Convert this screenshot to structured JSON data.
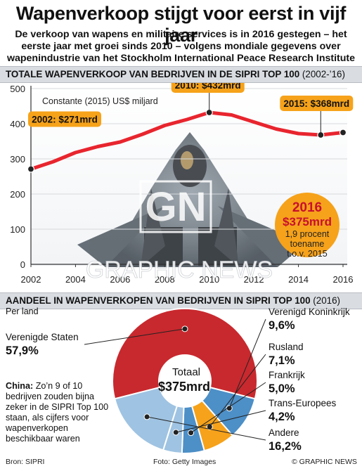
{
  "title": "Wapenverkoop stijgt voor eerst in vijf jaar",
  "subtitle": "De verkoop van wapens en militaire services is in 2016 gestegen – het eerste jaar met groei sinds 2010 – volgens mondiale gegevens over wapenindustrie van het Stockholm International Peace Research Institute (SIPRI)",
  "section1": {
    "heading": "TOTALE WAPENVERKOOP VAN BEDRIJVEN IN DE SIPRI TOP 100",
    "heading_sub": "(2002-’16)"
  },
  "section2": {
    "heading": "AANDEEL IN WAPENVERKOPEN VAN BEDRIJVEN IN SIPRI TOP 100",
    "heading_sub": "(2016)",
    "per_land": "Per land"
  },
  "watermark": {
    "logo": "GN",
    "text": "GRAPHIC NEWS"
  },
  "highlight": {
    "year": "2016",
    "value": "$375mrd",
    "note_line1": "1,9 procent",
    "note_line2": "toename",
    "note_line3": "t.o.v. 2015"
  },
  "china_note": {
    "label": "China:",
    "text": "Zo’n 9 of 10 bedrijven zouden bijna zeker in de SIPRI Top 100 staan, als cijfers voor wapenverkopen beschikbaar waren"
  },
  "footer": {
    "source": "Bron: SIPRI",
    "photo": "Foto: Getty Images",
    "credit": "© GRAPHIC NEWS"
  },
  "colors": {
    "line": "#e8252e",
    "callout": "#f6a21a",
    "donut_red": "#c8292e",
    "donut_blue": "#4d8fc7",
    "donut_lightblue": "#9fc3e2",
    "donut_orange": "#f6a21a",
    "highlight_circle": "#f6a21a",
    "highlight_text": "#c8102e"
  },
  "chart_data": [
    {
      "type": "line",
      "unit_label": "Constante (2015) US$ miljard",
      "x": [
        2002,
        2003,
        2004,
        2005,
        2006,
        2007,
        2008,
        2009,
        2010,
        2011,
        2012,
        2013,
        2014,
        2015,
        2016
      ],
      "series": [
        {
          "values": [
            271,
            292,
            318,
            335,
            348,
            370,
            395,
            412,
            432,
            425,
            405,
            385,
            372,
            368,
            375
          ]
        }
      ],
      "xticks": [
        2002,
        2004,
        2006,
        2008,
        2010,
        2012,
        2014,
        2016
      ],
      "yticks": [
        0,
        100,
        200,
        300,
        400,
        500
      ],
      "ylim": [
        0,
        500
      ],
      "xlim": [
        2002,
        2016
      ],
      "annotations": [
        {
          "x": 2002,
          "y": 271,
          "label": "2002: $271mrd"
        },
        {
          "x": 2010,
          "y": 432,
          "label": "2010: $432mrd"
        },
        {
          "x": 2015,
          "y": 368,
          "label": "2015: $368mrd"
        }
      ]
    },
    {
      "type": "pie",
      "center_label": "Totaal",
      "center_value": "$375mrd",
      "slices": [
        {
          "name": "Verenigde Staten",
          "value": 57.9,
          "value_label": "57,9%",
          "color": "#c8292e"
        },
        {
          "name": "Verenigd Koninkrijk",
          "value": 9.6,
          "value_label": "9,6%",
          "color": "#4d8fc7"
        },
        {
          "name": "Rusland",
          "value": 7.1,
          "value_label": "7,1%",
          "color": "#f6a21a"
        },
        {
          "name": "Frankrijk",
          "value": 5.0,
          "value_label": "5,0%",
          "color": "#4d8fc7"
        },
        {
          "name": "Trans-Europees",
          "value": 4.2,
          "value_label": "4,2%",
          "color": "#9fc3e2"
        },
        {
          "name": "Andere",
          "value": 16.2,
          "value_label": "16,2%",
          "color": "#9fc3e2"
        }
      ]
    }
  ]
}
